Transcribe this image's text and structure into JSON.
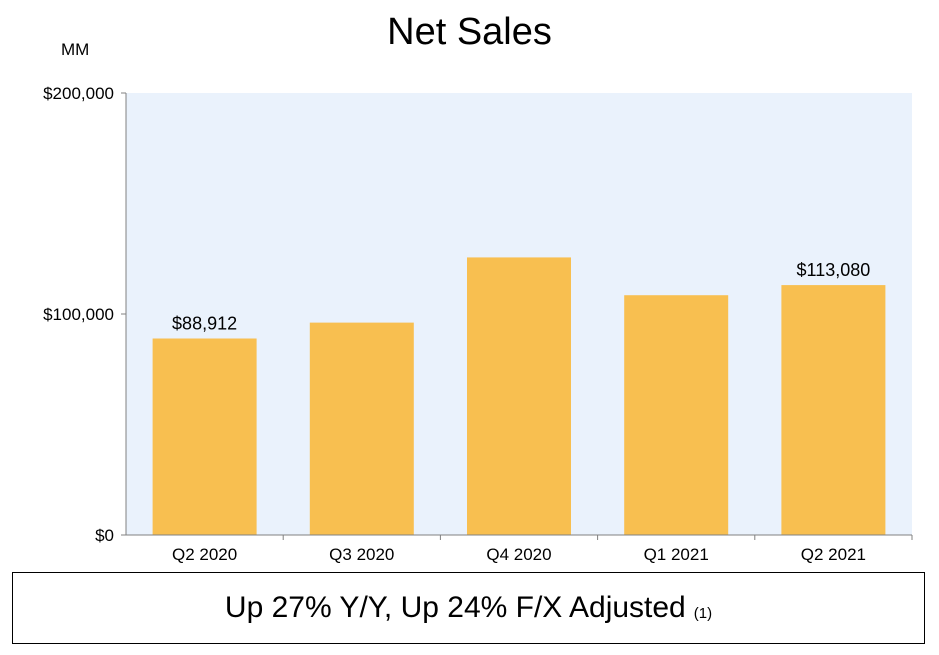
{
  "title": "Net Sales",
  "unit_label": "MM",
  "summary": {
    "text": "Up 27% Y/Y, Up 24% F/X Adjusted",
    "footnote": "(1)"
  },
  "colors": {
    "bar": "#F8BF50",
    "plot_background": "#EAF2FC",
    "axis": "#808080"
  },
  "chart_data": {
    "type": "bar",
    "title": "Net Sales",
    "ylabel": "MM",
    "xlabel": "",
    "categories": [
      "Q2 2020",
      "Q3 2020",
      "Q4 2020",
      "Q1 2021",
      "Q2 2021"
    ],
    "values": [
      88912,
      96100,
      125600,
      108500,
      113080
    ],
    "data_labels": [
      "$88,912",
      "",
      "",
      "",
      "$113,080"
    ],
    "ylim": [
      0,
      200000
    ],
    "yticks": [
      0,
      100000,
      200000
    ],
    "ytick_labels": [
      "$0",
      "$100,000",
      "$200,000"
    ],
    "grid": false,
    "legend": "none"
  }
}
